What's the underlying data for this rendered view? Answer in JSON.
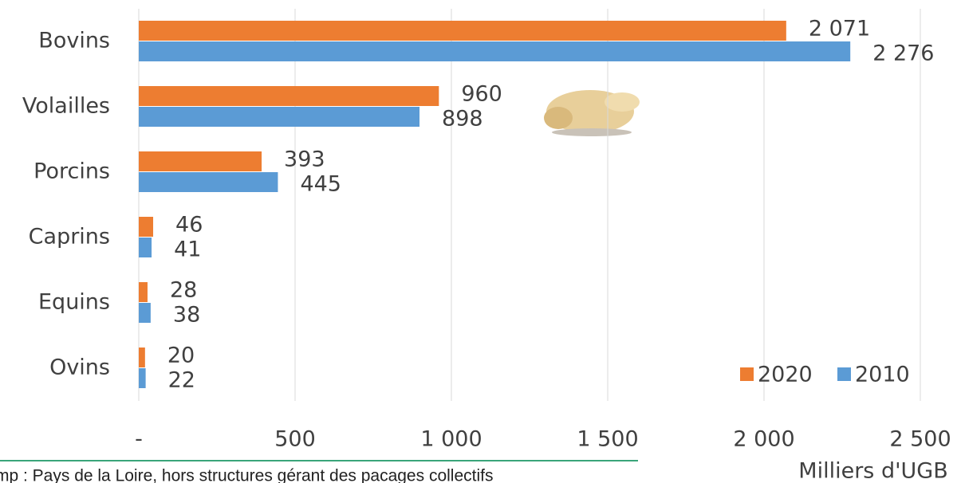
{
  "chart_data": {
    "type": "hbar",
    "categories": [
      "Bovins",
      "Volailles",
      "Porcins",
      "Caprins",
      "Equins",
      "Ovins"
    ],
    "series": [
      {
        "name": "2020",
        "color": "#ed7d31",
        "values": [
          2071,
          960,
          393,
          46,
          28,
          20
        ],
        "value_labels": [
          "2 071",
          "960",
          "393",
          "46",
          "28",
          "20"
        ]
      },
      {
        "name": "2010",
        "color": "#5b9bd5",
        "values": [
          2276,
          898,
          445,
          41,
          38,
          22
        ],
        "value_labels": [
          "2 276",
          "898",
          "445",
          "41",
          "38",
          "22"
        ]
      }
    ],
    "xlim": [
      0,
      2500
    ],
    "xticks": [
      {
        "value": 0,
        "label": "-"
      },
      500,
      {
        "value": 1000,
        "label": "1 000"
      },
      {
        "value": 1500,
        "label": "1 500"
      },
      {
        "value": 2000,
        "label": "2 000"
      },
      {
        "value": 2500,
        "label": "2 500"
      }
    ],
    "x_label": "Milliers d'UGB",
    "grid": true,
    "legend": "lower right",
    "footnote": "mp : Pays de la Loire, hors structures gérant des pacages collectifs"
  }
}
